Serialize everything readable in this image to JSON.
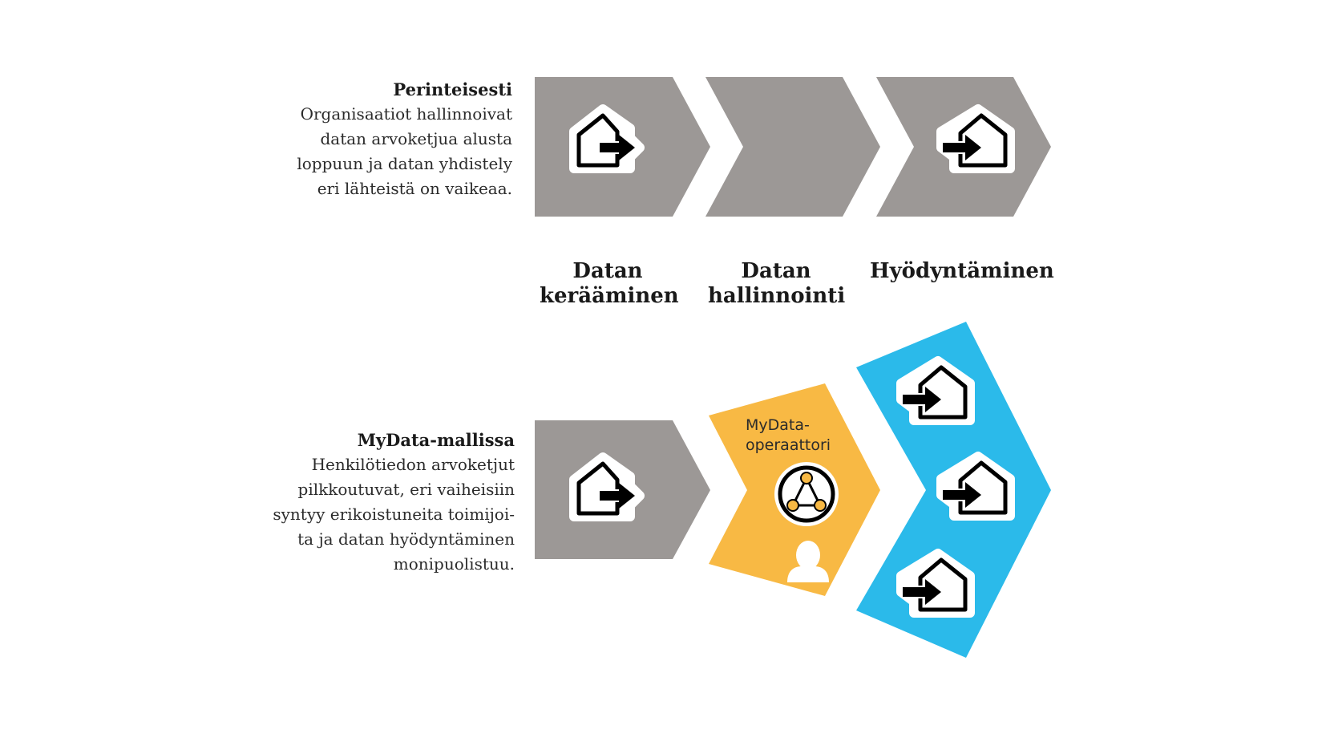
{
  "colors": {
    "gray": "#9c9896",
    "orange": "#f8b944",
    "blue": "#2bbaea",
    "icon_fill": "#ffffff",
    "icon_stroke": "#000000"
  },
  "traditional": {
    "heading": "Perinteisesti",
    "lines": [
      "Organisaatiot hallinnoivat",
      "datan arvoketjua alusta",
      "loppuun ja datan yhdistely",
      "eri lähteistä on vaikeaa."
    ]
  },
  "stages": [
    {
      "lines": [
        "Datan",
        "kerääminen"
      ]
    },
    {
      "lines": [
        "Datan",
        "hallinnointi"
      ]
    },
    {
      "lines": [
        "Hyödyntäminen"
      ]
    }
  ],
  "mydata": {
    "heading": "MyData-mallissa",
    "lines": [
      "Henkilötiedon arvoketjut",
      "pilkkoutuvat, eri vaiheisiin",
      "syntyy erikoistuneita toimijoi-",
      "ta ja datan hyödyntäminen",
      "monipuolistuu."
    ],
    "operator_label": [
      "MyData-",
      "operaattori"
    ]
  },
  "icons": {
    "collect": "house-export-icon",
    "use": "house-import-icon",
    "network": "network-circle-icon",
    "person": "person-icon"
  }
}
